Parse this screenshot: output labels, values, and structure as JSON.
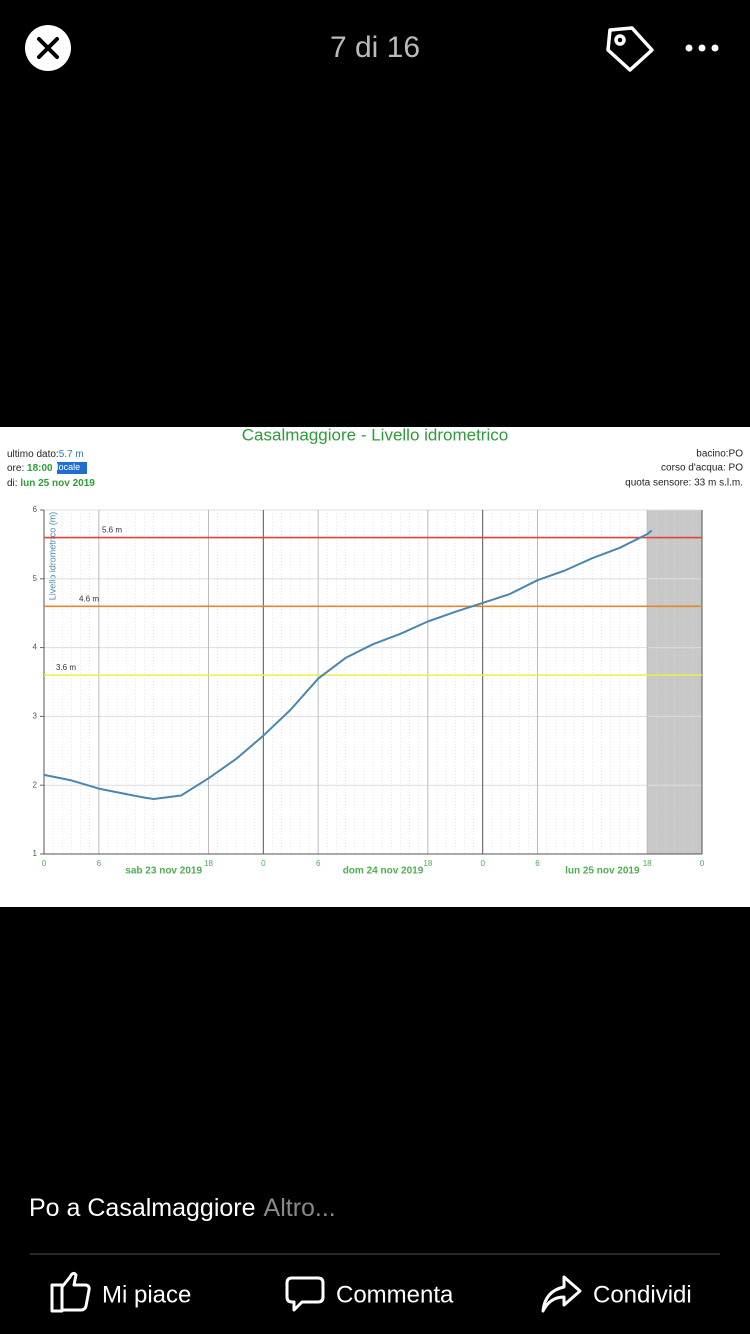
{
  "header": {
    "counter": "7 di 16"
  },
  "chart_data": {
    "type": "line",
    "title": "Casalmaggiore - Livello idrometrico",
    "info_left": [
      {
        "label": "ultimo dato:",
        "value": "5.7 m"
      },
      {
        "label": "ore: ",
        "value": "18:00",
        "badge": "locale"
      },
      {
        "label": "di: ",
        "value": "lun 25 nov 2019"
      }
    ],
    "info_right": [
      "bacino:PO",
      "corso d'acqua: PO",
      "quota sensore: 33 m s.l.m."
    ],
    "ylabel": "Livello idrometrico (m)",
    "x": [
      0,
      3,
      6,
      9,
      11,
      12,
      15,
      18,
      21,
      24,
      27,
      30,
      33,
      36,
      39,
      42,
      45,
      48,
      51,
      54,
      57,
      60,
      63,
      66,
      66.5
    ],
    "values": [
      2.15,
      2.07,
      1.95,
      1.87,
      1.82,
      1.8,
      1.85,
      2.1,
      2.38,
      2.72,
      3.1,
      3.55,
      3.85,
      4.05,
      4.2,
      4.38,
      4.52,
      4.65,
      4.78,
      4.98,
      5.12,
      5.3,
      5.45,
      5.65,
      5.7
    ],
    "color": "#4a86b0",
    "xlim": [
      0,
      72
    ],
    "xticks": [
      0,
      {
        "value": 6,
        "label": "6"
      },
      {
        "value": 18,
        "label": "18"
      },
      {
        "value": 24,
        "label": "0"
      },
      {
        "value": 30,
        "label": "6"
      },
      {
        "value": 42,
        "label": "18"
      },
      {
        "value": 48,
        "label": "0"
      },
      {
        "value": 54,
        "label": "6"
      },
      {
        "value": 66,
        "label": "18"
      },
      {
        "value": 72,
        "label": "0"
      }
    ],
    "x_groups": [
      "sab 23 nov 2019",
      "dom 24 nov 2019",
      "lun 25 nov 2019"
    ],
    "ylim": [
      1,
      6
    ],
    "yticks": [
      1,
      2,
      3,
      4,
      5,
      6
    ],
    "grid": true,
    "thresholds": [
      {
        "label": "5.6 m",
        "value": 5.6,
        "color": "#e0453a"
      },
      {
        "label": "4.6 m",
        "value": 4.6,
        "color": "#e0892e"
      },
      {
        "label": "3.6 m",
        "value": 3.6,
        "color": "#eeee44"
      }
    ],
    "shaded_band": [
      66,
      72
    ]
  },
  "caption": {
    "text": "Po a Casalmaggiore",
    "more": "Altro..."
  },
  "actions": [
    "Mi piace",
    "Commenta",
    "Condividi"
  ]
}
